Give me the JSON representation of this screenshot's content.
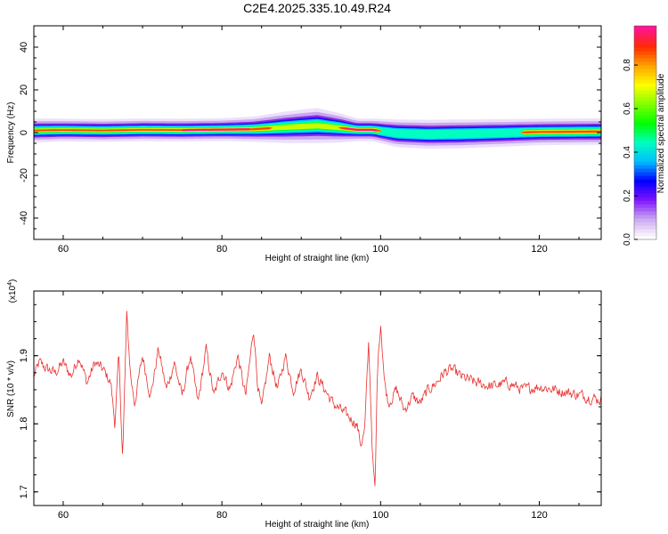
{
  "title": "C2E4.2025.335.10.49.R24",
  "chart_data": [
    {
      "type": "heatmap",
      "title": "C2E4.2025.335.10.49.R24",
      "xlabel": "Height of straight line (km)",
      "ylabel": "Frequency (Hz)",
      "xlim": [
        56.3,
        127.8
      ],
      "ylim": [
        -50,
        50
      ],
      "xticks": [
        60,
        80,
        100,
        120
      ],
      "yticks": [
        40,
        20,
        0,
        -20,
        -40
      ],
      "ridge": {
        "x": [
          56.3,
          60,
          65,
          70,
          75,
          80,
          84,
          88,
          92,
          95,
          97,
          99,
          102,
          106,
          110,
          115,
          120,
          127.8
        ],
        "center": [
          1.0,
          1.2,
          1.0,
          1.3,
          1.2,
          1.4,
          1.6,
          2.5,
          3.3,
          2.2,
          1.3,
          1.3,
          -0.3,
          -0.8,
          -0.6,
          -0.2,
          0.3,
          0.5
        ],
        "spread": [
          1.9,
          1.8,
          1.8,
          1.8,
          1.8,
          1.8,
          2.0,
          2.5,
          2.8,
          2.3,
          1.8,
          1.8,
          2.2,
          2.3,
          2.3,
          2.2,
          2.1,
          2.1
        ]
      },
      "colorbar": {
        "label": "Normalized spectral amplitude",
        "ticks": [
          "0.0",
          "0.2",
          "0.4",
          "0.6",
          "0.8"
        ],
        "colors": [
          "#ffffff",
          "#c9a6f0",
          "#7d12ff",
          "#0000ff",
          "#00bfff",
          "#00ffbf",
          "#00ff00",
          "#7fff00",
          "#ffff00",
          "#ffa500",
          "#ff2a00",
          "#ff1493"
        ]
      }
    },
    {
      "type": "line",
      "xlabel": "Height of straight line (km)",
      "ylabel": "SNR (10 * v/v)",
      "scale_label": "(x10",
      "scale_exp": "4",
      "scale_close": ")",
      "xlim": [
        56.3,
        127.8
      ],
      "ylim": [
        1.68,
        1.995
      ],
      "xticks": [
        60,
        80,
        100,
        120
      ],
      "yticks": [
        "1.9",
        "1.8",
        "1.7"
      ],
      "series": [
        {
          "name": "SNR",
          "color": "#e8302f",
          "anchors_x": [
            56.3,
            57,
            58,
            59,
            60,
            61,
            62,
            63,
            64,
            65,
            66,
            66.5,
            67,
            67.5,
            68,
            68.5,
            69,
            70,
            71,
            72,
            73,
            74,
            75,
            76,
            77,
            78,
            79,
            80,
            81,
            82,
            83,
            84,
            84.5,
            85,
            86,
            87,
            88,
            89,
            90,
            91,
            92,
            93,
            94,
            95,
            96,
            97,
            97.5,
            98,
            98.5,
            99,
            99.3,
            99.6,
            100,
            100.5,
            101,
            102,
            103,
            104,
            105,
            106,
            107,
            108,
            109,
            110,
            112,
            114,
            116,
            118,
            120,
            122,
            124,
            126,
            127.8
          ],
          "anchors_y": [
            1.87,
            1.89,
            1.88,
            1.875,
            1.89,
            1.87,
            1.9,
            1.86,
            1.89,
            1.88,
            1.86,
            1.8,
            1.9,
            1.75,
            1.96,
            1.87,
            1.83,
            1.9,
            1.84,
            1.91,
            1.85,
            1.89,
            1.84,
            1.9,
            1.83,
            1.91,
            1.84,
            1.88,
            1.85,
            1.9,
            1.84,
            1.94,
            1.86,
            1.82,
            1.9,
            1.85,
            1.9,
            1.85,
            1.88,
            1.84,
            1.87,
            1.85,
            1.83,
            1.82,
            1.81,
            1.8,
            1.77,
            1.79,
            1.92,
            1.75,
            1.7,
            1.88,
            1.95,
            1.86,
            1.83,
            1.85,
            1.82,
            1.84,
            1.83,
            1.85,
            1.86,
            1.875,
            1.88,
            1.87,
            1.86,
            1.855,
            1.86,
            1.85,
            1.855,
            1.85,
            1.845,
            1.84,
            1.835
          ],
          "noise": 0.013,
          "points": 800
        }
      ]
    }
  ]
}
